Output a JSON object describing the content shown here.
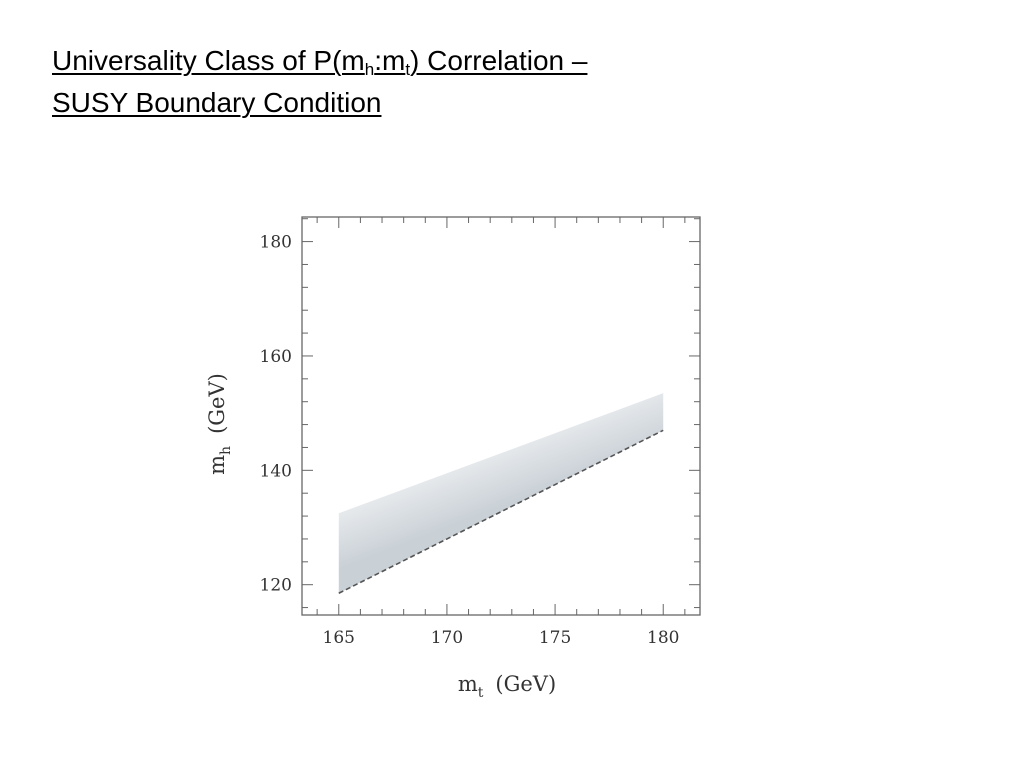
{
  "slide": {
    "title_prefix": "Universality Class of P(m",
    "title_sub1": "h",
    "title_colon": ":m",
    "title_sub2": "t",
    "title_suffix": ") Correlation –",
    "title_line2": "SUSY Boundary Condition"
  },
  "chart_data": {
    "type": "area",
    "title": "",
    "xlabel": {
      "main": "m",
      "sub": "t",
      "unit": "(GeV)"
    },
    "ylabel": {
      "main": "m",
      "sub": "h",
      "unit": "(GeV)"
    },
    "xlim": [
      163.3,
      181.7
    ],
    "ylim": [
      114.7,
      184.3
    ],
    "x_ticks": [
      165,
      170,
      175,
      180
    ],
    "y_ticks": [
      120,
      140,
      160,
      180
    ],
    "x_minor_step": 1,
    "y_minor_step": 4,
    "grid": false,
    "band": {
      "x": [
        165,
        180
      ],
      "lower": [
        118.5,
        147.0
      ],
      "upper": [
        132.5,
        153.5
      ],
      "lower_edge_style": "dashed",
      "fill_light": "#f7f8f9",
      "fill_dark": "#c9d0d6"
    },
    "colors": {
      "frame": "#666666",
      "edge": "#555555"
    }
  }
}
